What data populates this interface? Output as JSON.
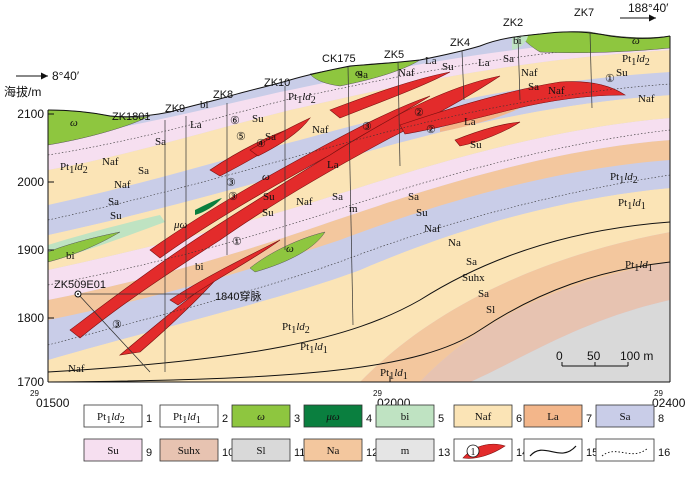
{
  "section": {
    "elevation_label": "海拔/m",
    "coord_left": "8°40′",
    "coord_right": "188°40′",
    "y_ticks": [
      "2100",
      "2000",
      "1900",
      "1800",
      "1700"
    ],
    "x_ticks": [
      {
        "sup": "29",
        "main": "01500"
      },
      {
        "sup": "29",
        "main": "02000"
      },
      {
        "sup": "29",
        "main": "02400"
      }
    ],
    "scale": {
      "zero": "0",
      "mid": "50",
      "end": "100 m"
    },
    "vein_note": "1840穿脉"
  },
  "drillholes": [
    "ZK1801",
    "ZK9",
    "ZK8",
    "ZK10",
    "CK175",
    "ZK5",
    "ZK4",
    "ZK2",
    "ZK7",
    "ZK509E01"
  ],
  "orebody_ids": [
    "①",
    "②",
    "③",
    "④",
    "⑤",
    "⑥"
  ],
  "unit_labels": {
    "sa": "Sa",
    "su": "Su",
    "naf": "Naf",
    "la": "La",
    "bi": "bi",
    "na": "Na",
    "suhx": "Suhx",
    "sl": "Sl",
    "m": "m",
    "omega": "ω",
    "mu_omega": "μω",
    "pt": "Pt",
    "sub1": "1",
    "ld2": "ld",
    "ld2_sub": "2",
    "ld1": "ld",
    "ld1_sub": "1"
  },
  "legend": [
    {
      "num": "1",
      "type": "text",
      "text_main": "Pt",
      "text_sub": "1",
      "text_it": "ld",
      "text_sub2": "2",
      "fill": "#ffffff"
    },
    {
      "num": "2",
      "type": "text",
      "text_main": "Pt",
      "text_sub": "1",
      "text_it": "ld",
      "text_sub2": "1",
      "fill": "#ffffff"
    },
    {
      "num": "3",
      "type": "swatch",
      "label": "ω",
      "fill": "#8ec63f"
    },
    {
      "num": "4",
      "type": "swatch",
      "label": "μω",
      "fill": "#0a7f3f"
    },
    {
      "num": "5",
      "type": "swatch",
      "label": "bi",
      "fill": "#bfe3c2"
    },
    {
      "num": "6",
      "type": "swatch",
      "label": "Naf",
      "fill": "#fbe4b6"
    },
    {
      "num": "7",
      "type": "swatch",
      "label": "La",
      "fill": "#f3b68a"
    },
    {
      "num": "8",
      "type": "swatch",
      "label": "Sa",
      "fill": "#c9cde8"
    },
    {
      "num": "9",
      "type": "swatch",
      "label": "Su",
      "fill": "#f6dff0"
    },
    {
      "num": "10",
      "type": "swatch",
      "label": "Suhx",
      "fill": "#e7c3b1"
    },
    {
      "num": "11",
      "type": "swatch",
      "label": "Sl",
      "fill": "#d9d9d9"
    },
    {
      "num": "12",
      "type": "swatch",
      "label": "Na",
      "fill": "#f3c79e"
    },
    {
      "num": "13",
      "type": "swatch",
      "label": "m",
      "fill": "#e5e5e5"
    },
    {
      "num": "14",
      "type": "ore",
      "label": "①"
    },
    {
      "num": "15",
      "type": "fault"
    },
    {
      "num": "16",
      "type": "boundary"
    }
  ]
}
